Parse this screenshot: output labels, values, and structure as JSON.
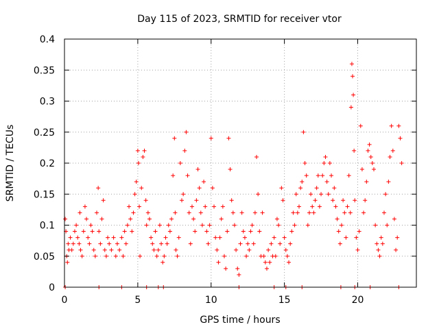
{
  "chart_data": {
    "type": "scatter",
    "title": "Day 115 of 2023, SRMTID for receiver vtor",
    "xlabel": "GPS time / hours",
    "ylabel": "SRMTID / TECUs",
    "xlim": [
      0,
      24
    ],
    "ylim": [
      0,
      0.4
    ],
    "xticks": [
      0,
      5,
      10,
      15,
      20
    ],
    "xtick_labels": [
      "0",
      "5",
      "10",
      "15",
      "20"
    ],
    "yticks": [
      0,
      0.05,
      0.1,
      0.15,
      0.2,
      0.25,
      0.3,
      0.35,
      0.4
    ],
    "ytick_labels": [
      "0",
      "0.05",
      "0.1",
      "0.15",
      "0.2",
      "0.25",
      "0.3",
      "0.35",
      "0.4"
    ],
    "grid": true,
    "marker": "+",
    "color": "#ff0000",
    "series": [
      {
        "name": "SRMTID",
        "points": [
          [
            0.05,
            0.11
          ],
          [
            0.1,
            0.09
          ],
          [
            0.15,
            0.05
          ],
          [
            0.2,
            0.04
          ],
          [
            0.25,
            0.07
          ],
          [
            0.3,
            0.06
          ],
          [
            0.4,
            0.08
          ],
          [
            0.5,
            0.06
          ],
          [
            0.6,
            0.07
          ],
          [
            0.7,
            0.09
          ],
          [
            0.8,
            0.1
          ],
          [
            0.9,
            0.08
          ],
          [
            1.0,
            0.07
          ],
          [
            1.05,
            0.12
          ],
          [
            1.1,
            0.06
          ],
          [
            1.2,
            0.05
          ],
          [
            1.3,
            0.09
          ],
          [
            1.4,
            0.13
          ],
          [
            1.5,
            0.11
          ],
          [
            1.6,
            0.08
          ],
          [
            1.7,
            0.07
          ],
          [
            1.8,
            0.1
          ],
          [
            1.9,
            0.09
          ],
          [
            2.0,
            0.06
          ],
          [
            2.1,
            0.05
          ],
          [
            2.2,
            0.12
          ],
          [
            2.3,
            0.16
          ],
          [
            2.35,
            0.09
          ],
          [
            2.45,
            0.07
          ],
          [
            2.55,
            0.11
          ],
          [
            2.65,
            0.14
          ],
          [
            2.75,
            0.06
          ],
          [
            2.85,
            0.05
          ],
          [
            2.95,
            0.08
          ],
          [
            3.05,
            0.07
          ],
          [
            3.2,
            0.06
          ],
          [
            3.35,
            0.08
          ],
          [
            3.5,
            0.05
          ],
          [
            3.6,
            0.07
          ],
          [
            3.75,
            0.06
          ],
          [
            3.9,
            0.08
          ],
          [
            4.0,
            0.05
          ],
          [
            4.1,
            0.09
          ],
          [
            4.2,
            0.07
          ],
          [
            4.3,
            0.1
          ],
          [
            4.4,
            0.13
          ],
          [
            4.5,
            0.11
          ],
          [
            4.6,
            0.09
          ],
          [
            4.7,
            0.12
          ],
          [
            4.8,
            0.15
          ],
          [
            4.9,
            0.17
          ],
          [
            5.0,
            0.22
          ],
          [
            5.05,
            0.2
          ],
          [
            5.1,
            0.13
          ],
          [
            5.15,
            0.05
          ],
          [
            5.25,
            0.16
          ],
          [
            5.35,
            0.21
          ],
          [
            5.45,
            0.22
          ],
          [
            5.55,
            0.14
          ],
          [
            5.6,
            0.1
          ],
          [
            5.7,
            0.12
          ],
          [
            5.8,
            0.11
          ],
          [
            5.9,
            0.08
          ],
          [
            6.0,
            0.07
          ],
          [
            6.1,
            0.06
          ],
          [
            6.2,
            0.09
          ],
          [
            6.3,
            0.05
          ],
          [
            6.4,
            0.06
          ],
          [
            6.5,
            0.1
          ],
          [
            6.6,
            0.07
          ],
          [
            6.7,
            0.04
          ],
          [
            6.8,
            0.05
          ],
          [
            6.9,
            0.08
          ],
          [
            7.0,
            0.07
          ],
          [
            7.1,
            0.1
          ],
          [
            7.2,
            0.09
          ],
          [
            7.3,
            0.11
          ],
          [
            7.4,
            0.18
          ],
          [
            7.5,
            0.24
          ],
          [
            7.55,
            0.12
          ],
          [
            7.6,
            0.06
          ],
          [
            7.7,
            0.05
          ],
          [
            7.8,
            0.08
          ],
          [
            7.9,
            0.2
          ],
          [
            8.0,
            0.14
          ],
          [
            8.1,
            0.15
          ],
          [
            8.2,
            0.22
          ],
          [
            8.3,
            0.25
          ],
          [
            8.4,
            0.18
          ],
          [
            8.5,
            0.12
          ],
          [
            8.6,
            0.07
          ],
          [
            8.7,
            0.13
          ],
          [
            8.8,
            0.11
          ],
          [
            8.9,
            0.09
          ],
          [
            9.0,
            0.14
          ],
          [
            9.1,
            0.19
          ],
          [
            9.2,
            0.16
          ],
          [
            9.3,
            0.12
          ],
          [
            9.4,
            0.1
          ],
          [
            9.5,
            0.17
          ],
          [
            9.6,
            0.13
          ],
          [
            9.7,
            0.09
          ],
          [
            9.8,
            0.07
          ],
          [
            9.9,
            0.1
          ],
          [
            10.0,
            0.24
          ],
          [
            10.1,
            0.16
          ],
          [
            10.2,
            0.13
          ],
          [
            10.3,
            0.08
          ],
          [
            10.4,
            0.06
          ],
          [
            10.5,
            0.04
          ],
          [
            10.6,
            0.08
          ],
          [
            10.7,
            0.11
          ],
          [
            10.8,
            0.13
          ],
          [
            10.9,
            0.05
          ],
          [
            11.0,
            0.03
          ],
          [
            11.1,
            0.09
          ],
          [
            11.2,
            0.24
          ],
          [
            11.3,
            0.19
          ],
          [
            11.4,
            0.14
          ],
          [
            11.5,
            0.12
          ],
          [
            11.6,
            0.1
          ],
          [
            11.7,
            0.06
          ],
          [
            11.8,
            0.03
          ],
          [
            11.9,
            0.02
          ],
          [
            12.0,
            0.07
          ],
          [
            12.1,
            0.12
          ],
          [
            12.2,
            0.09
          ],
          [
            12.3,
            0.08
          ],
          [
            12.4,
            0.05
          ],
          [
            12.5,
            0.07
          ],
          [
            12.6,
            0.06
          ],
          [
            12.7,
            0.09
          ],
          [
            12.8,
            0.1
          ],
          [
            12.9,
            0.07
          ],
          [
            13.0,
            0.12
          ],
          [
            13.1,
            0.21
          ],
          [
            13.2,
            0.15
          ],
          [
            13.3,
            0.09
          ],
          [
            13.4,
            0.05
          ],
          [
            13.5,
            0.12
          ],
          [
            13.6,
            0.05
          ],
          [
            13.7,
            0.04
          ],
          [
            13.8,
            0.03
          ],
          [
            13.9,
            0.06
          ],
          [
            14.0,
            0.04
          ],
          [
            14.1,
            0.07
          ],
          [
            14.2,
            0.05
          ],
          [
            14.3,
            0.08
          ],
          [
            14.4,
            0.05
          ],
          [
            14.5,
            0.11
          ],
          [
            14.6,
            0.1
          ],
          [
            14.7,
            0.07
          ],
          [
            14.8,
            0.16
          ],
          [
            14.9,
            0.14
          ],
          [
            15.0,
            0.08
          ],
          [
            15.1,
            0.06
          ],
          [
            15.2,
            0.05
          ],
          [
            15.3,
            0.04
          ],
          [
            15.4,
            0.07
          ],
          [
            15.5,
            0.09
          ],
          [
            15.6,
            0.12
          ],
          [
            15.7,
            0.1
          ],
          [
            15.8,
            0.15
          ],
          [
            15.9,
            0.12
          ],
          [
            16.0,
            0.13
          ],
          [
            16.1,
            0.16
          ],
          [
            16.2,
            0.17
          ],
          [
            16.3,
            0.25
          ],
          [
            16.4,
            0.2
          ],
          [
            16.5,
            0.18
          ],
          [
            16.6,
            0.1
          ],
          [
            16.7,
            0.12
          ],
          [
            16.8,
            0.15
          ],
          [
            16.9,
            0.13
          ],
          [
            17.0,
            0.12
          ],
          [
            17.1,
            0.14
          ],
          [
            17.2,
            0.16
          ],
          [
            17.3,
            0.18
          ],
          [
            17.4,
            0.13
          ],
          [
            17.5,
            0.15
          ],
          [
            17.6,
            0.18
          ],
          [
            17.7,
            0.2
          ],
          [
            17.8,
            0.21
          ],
          [
            17.9,
            0.17
          ],
          [
            18.0,
            0.15
          ],
          [
            18.1,
            0.2
          ],
          [
            18.2,
            0.18
          ],
          [
            18.3,
            0.14
          ],
          [
            18.4,
            0.16
          ],
          [
            18.5,
            0.13
          ],
          [
            18.6,
            0.11
          ],
          [
            18.7,
            0.09
          ],
          [
            18.8,
            0.07
          ],
          [
            18.9,
            0.1
          ],
          [
            19.0,
            0.14
          ],
          [
            19.1,
            0.12
          ],
          [
            19.2,
            0.08
          ],
          [
            19.3,
            0.13
          ],
          [
            19.4,
            0.18
          ],
          [
            19.5,
            0.12
          ],
          [
            19.55,
            0.29
          ],
          [
            19.6,
            0.36
          ],
          [
            19.65,
            0.34
          ],
          [
            19.7,
            0.31
          ],
          [
            19.75,
            0.22
          ],
          [
            19.8,
            0.14
          ],
          [
            19.9,
            0.08
          ],
          [
            20.0,
            0.06
          ],
          [
            20.1,
            0.09
          ],
          [
            20.2,
            0.26
          ],
          [
            20.3,
            0.19
          ],
          [
            20.4,
            0.12
          ],
          [
            20.5,
            0.14
          ],
          [
            20.6,
            0.17
          ],
          [
            20.7,
            0.22
          ],
          [
            20.8,
            0.23
          ],
          [
            20.9,
            0.21
          ],
          [
            21.0,
            0.2
          ],
          [
            21.1,
            0.19
          ],
          [
            21.2,
            0.1
          ],
          [
            21.3,
            0.07
          ],
          [
            21.4,
            0.06
          ],
          [
            21.5,
            0.05
          ],
          [
            21.6,
            0.08
          ],
          [
            21.7,
            0.07
          ],
          [
            21.8,
            0.12
          ],
          [
            21.9,
            0.15
          ],
          [
            22.0,
            0.1
          ],
          [
            22.1,
            0.17
          ],
          [
            22.2,
            0.21
          ],
          [
            22.3,
            0.26
          ],
          [
            22.4,
            0.22
          ],
          [
            22.5,
            0.11
          ],
          [
            22.6,
            0.06
          ],
          [
            22.7,
            0.08
          ],
          [
            22.8,
            0.26
          ],
          [
            22.9,
            0.24
          ],
          [
            23.0,
            0.2
          ]
        ]
      }
    ],
    "zero_points_x": [
      0.05,
      2.35,
      3.9,
      5.6,
      6.4,
      6.75,
      11.9,
      14.3,
      15.1,
      16.2,
      18.85,
      19.8,
      20.85,
      22.8
    ]
  }
}
